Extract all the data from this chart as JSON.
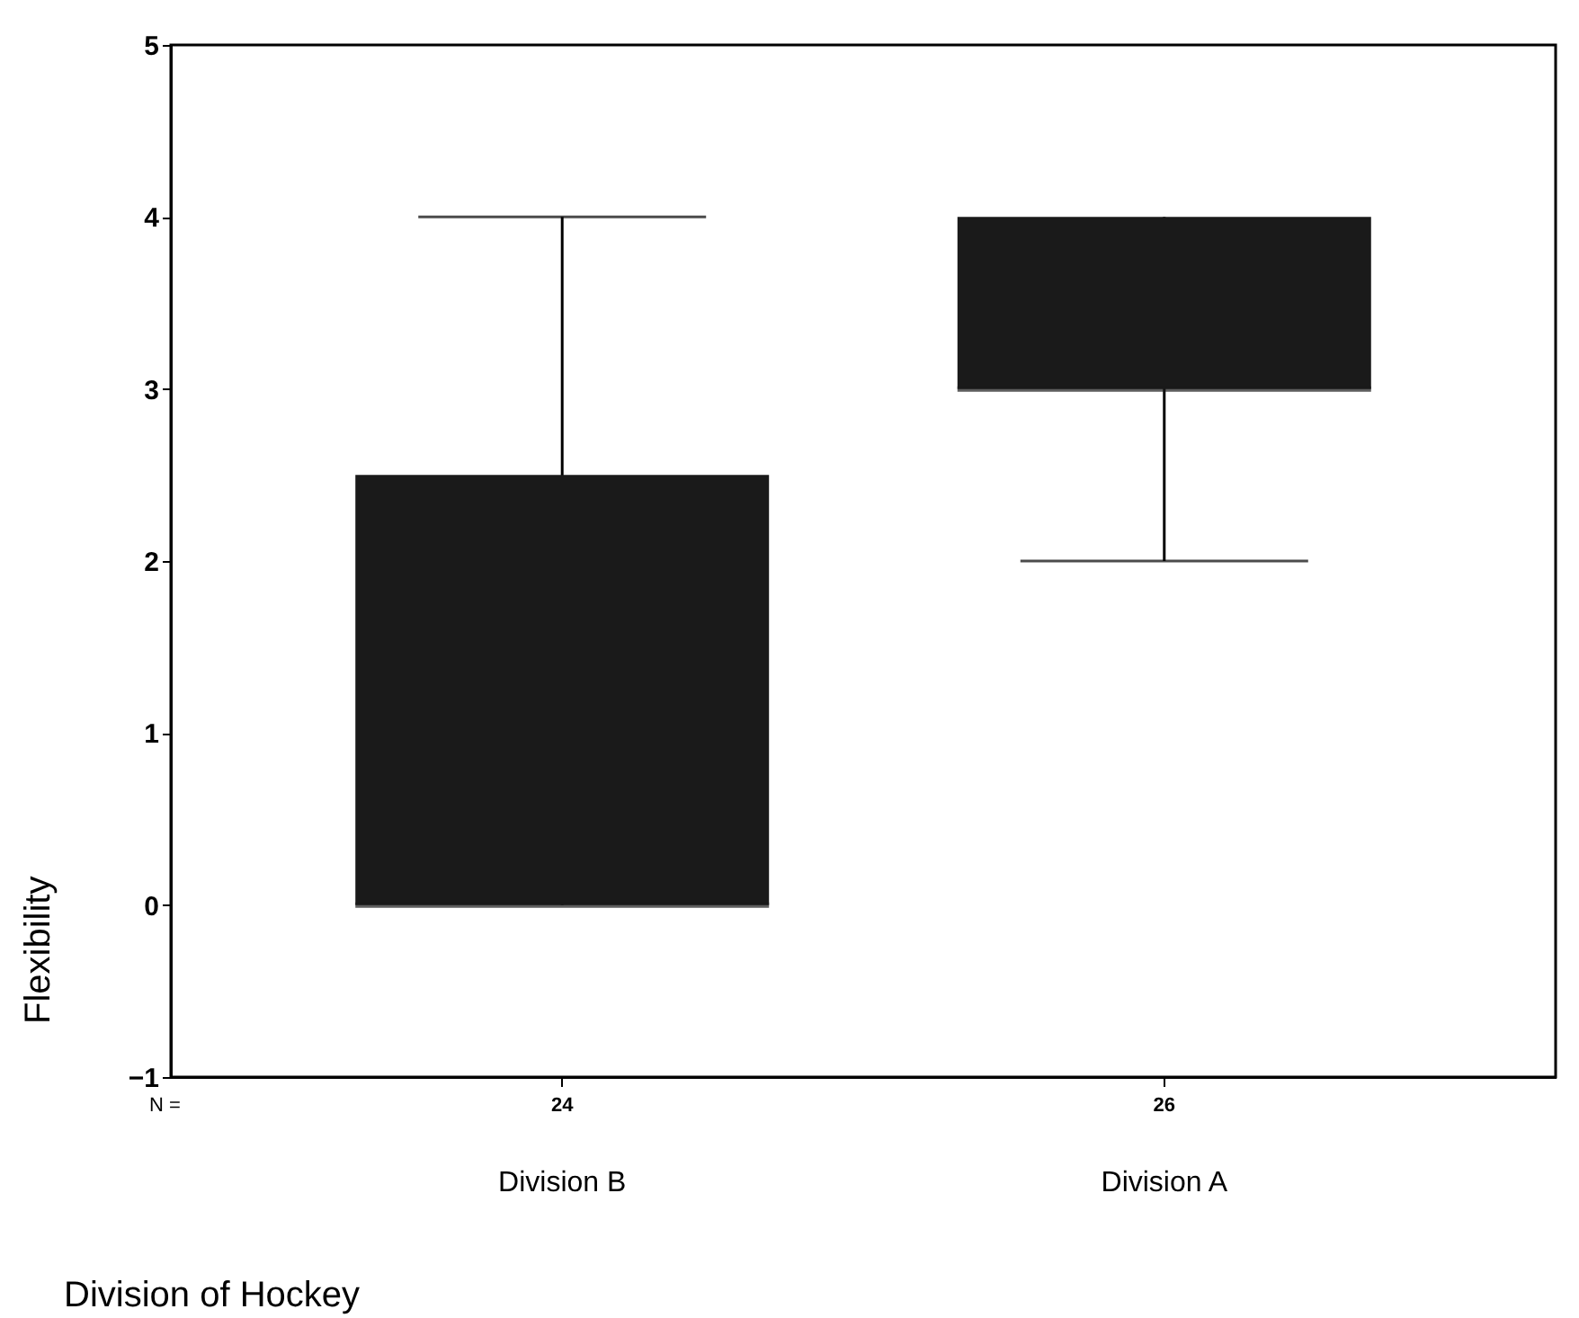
{
  "chart_data": {
    "type": "box",
    "xlabel": "Division of Hockey",
    "ylabel": "Flexibility",
    "categories": [
      "Division B",
      "Division A"
    ],
    "boxes": [
      {
        "low": 0,
        "q1": 0,
        "median": 0,
        "q3": 2.5,
        "high": 4
      },
      {
        "low": 2,
        "q1": 3,
        "median": 3,
        "q3": 4,
        "high": 4
      }
    ],
    "color": "#1a1a1a",
    "ylim": [
      -1,
      5
    ],
    "yticks": [
      -1,
      0,
      1,
      2,
      3,
      4,
      5
    ],
    "grid": false,
    "annotations": [
      "N =",
      "24",
      "26"
    ]
  }
}
